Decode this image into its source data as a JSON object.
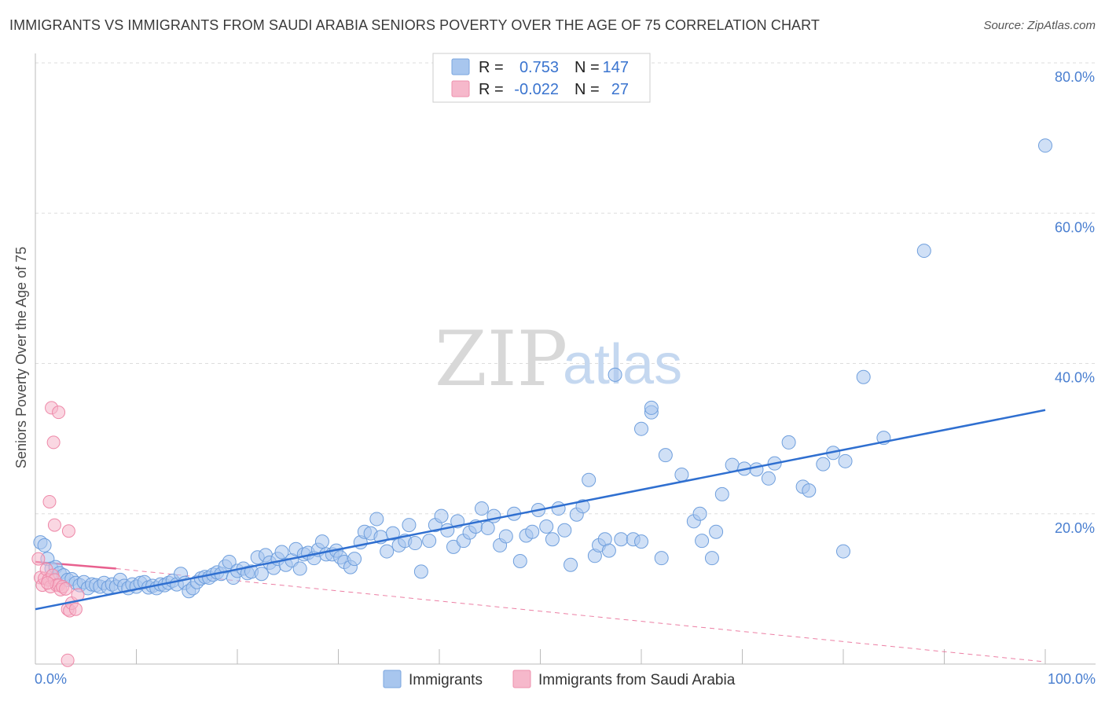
{
  "header": {
    "title": "IMMIGRANTS VS IMMIGRANTS FROM SAUDI ARABIA SENIORS POVERTY OVER THE AGE OF 75 CORRELATION CHART",
    "source": "Source: ZipAtlas.com"
  },
  "watermark": {
    "zip": "ZIP",
    "atlas": "atlas"
  },
  "legend": {
    "rows": [
      {
        "r_label": "R =",
        "r_value": "0.753",
        "n_label": "N =",
        "n_value": "147",
        "color": "#a8c6ee"
      },
      {
        "r_label": "R =",
        "r_value": "-0.022",
        "n_label": "N =",
        "n_value": "27",
        "color": "#f6b8cb"
      }
    ]
  },
  "bottom_legend": {
    "items": [
      "Immigrants",
      "Immigrants from Saudi Arabia"
    ]
  },
  "chart_data": {
    "type": "scatter",
    "title": "IMMIGRANTS VS IMMIGRANTS FROM SAUDI ARABIA SENIORS POVERTY OVER THE AGE OF 75 CORRELATION CHART",
    "xlabel": "",
    "ylabel": "Seniors Poverty Over the Age of 75",
    "xlim": [
      0,
      100
    ],
    "ylim": [
      0,
      80
    ],
    "x_tick_labels": [
      "0.0%",
      "100.0%"
    ],
    "y_tick_values": [
      20,
      40,
      60,
      80
    ],
    "y_tick_labels": [
      "20.0%",
      "40.0%",
      "60.0%",
      "80.0%"
    ],
    "colors": {
      "blue_fill": "#a9c7ee",
      "blue_stroke": "#6f9fdd",
      "blue_line": "#2f6fd0",
      "pink_fill": "#f6b7ca",
      "pink_stroke": "#ee88a8",
      "pink_line": "#e8608e"
    },
    "series": [
      {
        "name": "Immigrants",
        "r": 0.753,
        "n": 147,
        "trend": {
          "x": [
            0,
            100
          ],
          "y": [
            7.3,
            33.8
          ]
        },
        "points": [
          [
            0.5,
            16.2
          ],
          [
            0.9,
            15.8
          ],
          [
            1.2,
            14
          ],
          [
            1.6,
            12.7
          ],
          [
            2,
            12.9
          ],
          [
            2.4,
            12.1
          ],
          [
            2.8,
            11.8
          ],
          [
            3.2,
            11.2
          ],
          [
            3.6,
            11.3
          ],
          [
            4,
            10.8
          ],
          [
            4.4,
            10.5
          ],
          [
            4.8,
            10.9
          ],
          [
            5.2,
            10.1
          ],
          [
            5.6,
            10.6
          ],
          [
            6,
            10.5
          ],
          [
            6.4,
            10.3
          ],
          [
            6.8,
            10.8
          ],
          [
            7.2,
            10.2
          ],
          [
            7.6,
            10.6
          ],
          [
            8,
            10.3
          ],
          [
            8.4,
            11.2
          ],
          [
            8.8,
            10.4
          ],
          [
            9.2,
            10.1
          ],
          [
            9.6,
            10.6
          ],
          [
            10,
            10.3
          ],
          [
            10.4,
            10.8
          ],
          [
            10.8,
            10.9
          ],
          [
            11.2,
            10.2
          ],
          [
            11.6,
            10.4
          ],
          [
            12,
            10.1
          ],
          [
            12.4,
            10.6
          ],
          [
            12.8,
            10.5
          ],
          [
            13.2,
            10.8
          ],
          [
            13.6,
            11.1
          ],
          [
            14,
            10.6
          ],
          [
            14.4,
            12
          ],
          [
            14.8,
            10.8
          ],
          [
            15.2,
            9.7
          ],
          [
            15.6,
            10.1
          ],
          [
            16,
            10.9
          ],
          [
            16.4,
            11.4
          ],
          [
            16.8,
            11.6
          ],
          [
            17.2,
            11.5
          ],
          [
            17.6,
            11.9
          ],
          [
            18,
            12.2
          ],
          [
            18.4,
            12
          ],
          [
            18.8,
            13
          ],
          [
            19.2,
            13.6
          ],
          [
            19.6,
            11.5
          ],
          [
            20,
            12.4
          ],
          [
            20.6,
            12.7
          ],
          [
            21,
            12.1
          ],
          [
            21.4,
            12.3
          ],
          [
            22,
            14.2
          ],
          [
            22.4,
            12
          ],
          [
            22.8,
            14.5
          ],
          [
            23.2,
            13.5
          ],
          [
            23.6,
            12.8
          ],
          [
            24,
            14
          ],
          [
            24.4,
            14.9
          ],
          [
            24.8,
            13.2
          ],
          [
            25.4,
            13.8
          ],
          [
            25.8,
            15.3
          ],
          [
            26.2,
            12.7
          ],
          [
            26.6,
            14.6
          ],
          [
            27,
            14.8
          ],
          [
            27.6,
            14.1
          ],
          [
            28,
            15.2
          ],
          [
            28.4,
            16.3
          ],
          [
            28.8,
            14.6
          ],
          [
            29.4,
            14.6
          ],
          [
            29.8,
            15.1
          ],
          [
            30.2,
            14.2
          ],
          [
            30.6,
            13.6
          ],
          [
            31.2,
            12.9
          ],
          [
            31.6,
            14
          ],
          [
            32.2,
            16.2
          ],
          [
            32.6,
            17.6
          ],
          [
            33.2,
            17.4
          ],
          [
            33.8,
            19.3
          ],
          [
            34.2,
            16.9
          ],
          [
            34.8,
            15
          ],
          [
            35.4,
            17.4
          ],
          [
            36,
            15.8
          ],
          [
            36.6,
            16.4
          ],
          [
            37,
            18.5
          ],
          [
            37.6,
            16.1
          ],
          [
            38.2,
            12.3
          ],
          [
            39,
            16.4
          ],
          [
            39.6,
            18.5
          ],
          [
            40.2,
            19.7
          ],
          [
            40.8,
            17.8
          ],
          [
            41.4,
            15.6
          ],
          [
            41.8,
            19
          ],
          [
            42.4,
            16.4
          ],
          [
            43,
            17.5
          ],
          [
            43.6,
            18.3
          ],
          [
            44.2,
            20.7
          ],
          [
            44.8,
            18.1
          ],
          [
            45.4,
            19.7
          ],
          [
            46,
            15.8
          ],
          [
            46.6,
            17
          ],
          [
            47.4,
            20
          ],
          [
            48,
            13.7
          ],
          [
            48.6,
            17.1
          ],
          [
            49.2,
            17.6
          ],
          [
            49.8,
            20.5
          ],
          [
            50.6,
            18.3
          ],
          [
            51.2,
            16.6
          ],
          [
            51.8,
            20.7
          ],
          [
            52.4,
            17.8
          ],
          [
            53,
            13.2
          ],
          [
            53.6,
            19.9
          ],
          [
            54.2,
            21
          ],
          [
            54.8,
            24.5
          ],
          [
            55.4,
            14.4
          ],
          [
            55.8,
            15.8
          ],
          [
            56.4,
            16.6
          ],
          [
            56.8,
            15.1
          ],
          [
            58,
            16.6
          ],
          [
            59.2,
            16.6
          ],
          [
            60,
            16.3
          ],
          [
            62,
            14.1
          ],
          [
            66,
            16.4
          ],
          [
            67,
            14.1
          ],
          [
            61,
            33.5
          ],
          [
            62.4,
            27.8
          ],
          [
            64,
            25.2
          ],
          [
            65.2,
            19
          ],
          [
            65.8,
            20
          ],
          [
            67.4,
            17.6
          ],
          [
            68,
            22.6
          ],
          [
            69,
            26.5
          ],
          [
            70.2,
            26
          ],
          [
            71.4,
            25.9
          ],
          [
            72.6,
            24.7
          ],
          [
            73.2,
            26.7
          ],
          [
            74.6,
            29.5
          ],
          [
            76,
            23.6
          ],
          [
            76.6,
            23.1
          ],
          [
            78,
            26.6
          ],
          [
            79,
            28.1
          ],
          [
            80,
            15
          ],
          [
            80.2,
            27
          ],
          [
            82,
            38.2
          ],
          [
            84,
            30.1
          ],
          [
            88,
            55
          ],
          [
            61,
            34.1
          ],
          [
            57.4,
            38.5
          ],
          [
            60,
            31.3
          ],
          [
            100,
            69
          ]
        ]
      },
      {
        "name": "Immigrants from Saudi Arabia",
        "r": -0.022,
        "n": 27,
        "trend_solid": {
          "x": [
            0,
            8
          ],
          "y": [
            13.6,
            12.7
          ]
        },
        "trend_dashed": {
          "x": [
            8,
            100
          ],
          "y": [
            12.7,
            0.3
          ]
        },
        "points": [
          [
            0.3,
            14
          ],
          [
            0.5,
            11.5
          ],
          [
            0.7,
            10.5
          ],
          [
            0.9,
            11.4
          ],
          [
            1.1,
            12.6
          ],
          [
            1.3,
            11.2
          ],
          [
            1.5,
            10.3
          ],
          [
            1.7,
            11.8
          ],
          [
            1.9,
            11.2
          ],
          [
            2.1,
            10.5
          ],
          [
            2.3,
            10.5
          ],
          [
            2.5,
            9.9
          ],
          [
            2.7,
            10.3
          ],
          [
            3,
            10
          ],
          [
            3.2,
            7.3
          ],
          [
            3.4,
            7.1
          ],
          [
            3.6,
            8.1
          ],
          [
            4,
            7.3
          ],
          [
            4.2,
            9.2
          ],
          [
            1.6,
            34.1
          ],
          [
            2.3,
            33.5
          ],
          [
            1.8,
            29.5
          ],
          [
            1.4,
            21.6
          ],
          [
            1.9,
            18.5
          ],
          [
            3.3,
            17.7
          ],
          [
            3.2,
            0.5
          ],
          [
            1.2,
            10.8
          ]
        ]
      }
    ]
  }
}
